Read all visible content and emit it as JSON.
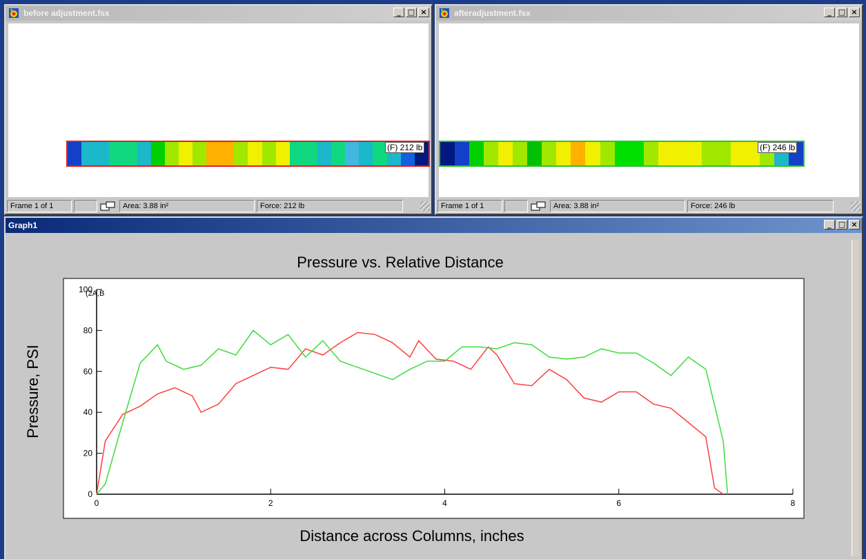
{
  "window_left": {
    "title": "before adjustment.fsx",
    "status": {
      "frame": "Frame 1 of 1",
      "area": "Area: 3.88 in²",
      "force": "Force: 212 lb"
    },
    "strip_label": "(F) 212 lb",
    "strip_colors": [
      "#1240c8",
      "#1ab8c8",
      "#1ab8c8",
      "#10d880",
      "#10d880",
      "#1ab8c8",
      "#00d000",
      "#a0e800",
      "#f0f000",
      "#a0e800",
      "#ffb000",
      "#ffb000",
      "#a0e800",
      "#f0f000",
      "#a0e800",
      "#f0f000",
      "#10d880",
      "#10d880",
      "#1ab8c8",
      "#10d880",
      "#40b8e0",
      "#1ab8c8",
      "#10d880",
      "#1ab8c8",
      "#1060e0",
      "#001880"
    ]
  },
  "window_right": {
    "title": "afteradjustment.fsx",
    "status": {
      "frame": "Frame 1 of 1",
      "area": "Area: 3.88 in²",
      "force": "Force: 246 lb"
    },
    "strip_label": "(F) 246 lb",
    "strip_colors": [
      "#001880",
      "#1240c8",
      "#00d000",
      "#a0e800",
      "#f0f000",
      "#a0e800",
      "#00c000",
      "#a0e800",
      "#f0f000",
      "#ffb000",
      "#f0f000",
      "#a0e800",
      "#00e000",
      "#00e000",
      "#a0e800",
      "#f0f000",
      "#f0f000",
      "#f0f000",
      "#a0e800",
      "#a0e800",
      "#f0f000",
      "#f0f000",
      "#a0e800",
      "#1ab8c8",
      "#1240c8"
    ]
  },
  "graph_window": {
    "title": "Graph1"
  },
  "window_buttons": {
    "minimize": "_",
    "maximize": "□",
    "close": "×"
  },
  "icons": {
    "sensor": "app-sensor-icon",
    "snapshot": "snapshot-icon",
    "resize": "size-grip-icon"
  },
  "chart_data": {
    "type": "line",
    "title": "Pressure vs. Relative Distance",
    "xlabel": "Distance across Columns, inches",
    "ylabel": "Pressure, PSI",
    "xlim": [
      0,
      8
    ],
    "ylim": [
      0,
      100
    ],
    "x_ticks": [
      0,
      2,
      4,
      6,
      8
    ],
    "y_ticks": [
      0,
      20,
      40,
      60,
      80,
      100
    ],
    "annotation": "(2A,B",
    "grid": false,
    "series": [
      {
        "color": "#ff3c3c",
        "points": [
          [
            0,
            0
          ],
          [
            0.1,
            26
          ],
          [
            0.3,
            39
          ],
          [
            0.5,
            43
          ],
          [
            0.7,
            49
          ],
          [
            0.9,
            52
          ],
          [
            1.1,
            48
          ],
          [
            1.2,
            40
          ],
          [
            1.4,
            44
          ],
          [
            1.6,
            54
          ],
          [
            1.8,
            58
          ],
          [
            2.0,
            62
          ],
          [
            2.2,
            61
          ],
          [
            2.4,
            71
          ],
          [
            2.6,
            68
          ],
          [
            2.8,
            74
          ],
          [
            3.0,
            79
          ],
          [
            3.2,
            78
          ],
          [
            3.4,
            74
          ],
          [
            3.6,
            67
          ],
          [
            3.7,
            75
          ],
          [
            3.9,
            66
          ],
          [
            4.1,
            65
          ],
          [
            4.3,
            61
          ],
          [
            4.5,
            72
          ],
          [
            4.6,
            68
          ],
          [
            4.8,
            54
          ],
          [
            5.0,
            53
          ],
          [
            5.2,
            61
          ],
          [
            5.4,
            56
          ],
          [
            5.6,
            47
          ],
          [
            5.8,
            45
          ],
          [
            6.0,
            50
          ],
          [
            6.2,
            50
          ],
          [
            6.4,
            44
          ],
          [
            6.6,
            42
          ],
          [
            6.8,
            35
          ],
          [
            7.0,
            28
          ],
          [
            7.1,
            3
          ],
          [
            7.2,
            0
          ]
        ]
      },
      {
        "color": "#3cdc3c",
        "points": [
          [
            0,
            0
          ],
          [
            0.1,
            5
          ],
          [
            0.3,
            35
          ],
          [
            0.5,
            64
          ],
          [
            0.7,
            73
          ],
          [
            0.8,
            65
          ],
          [
            1.0,
            61
          ],
          [
            1.2,
            63
          ],
          [
            1.4,
            71
          ],
          [
            1.6,
            68
          ],
          [
            1.8,
            80
          ],
          [
            2.0,
            73
          ],
          [
            2.2,
            78
          ],
          [
            2.4,
            67
          ],
          [
            2.6,
            75
          ],
          [
            2.8,
            65
          ],
          [
            3.0,
            62
          ],
          [
            3.2,
            59
          ],
          [
            3.4,
            56
          ],
          [
            3.6,
            61
          ],
          [
            3.8,
            65
          ],
          [
            4.0,
            65
          ],
          [
            4.2,
            72
          ],
          [
            4.4,
            72
          ],
          [
            4.6,
            71
          ],
          [
            4.8,
            74
          ],
          [
            5.0,
            73
          ],
          [
            5.2,
            67
          ],
          [
            5.4,
            66
          ],
          [
            5.6,
            67
          ],
          [
            5.8,
            71
          ],
          [
            6.0,
            69
          ],
          [
            6.2,
            69
          ],
          [
            6.4,
            64
          ],
          [
            6.6,
            58
          ],
          [
            6.8,
            67
          ],
          [
            7.0,
            61
          ],
          [
            7.2,
            26
          ],
          [
            7.25,
            0
          ]
        ]
      }
    ]
  }
}
